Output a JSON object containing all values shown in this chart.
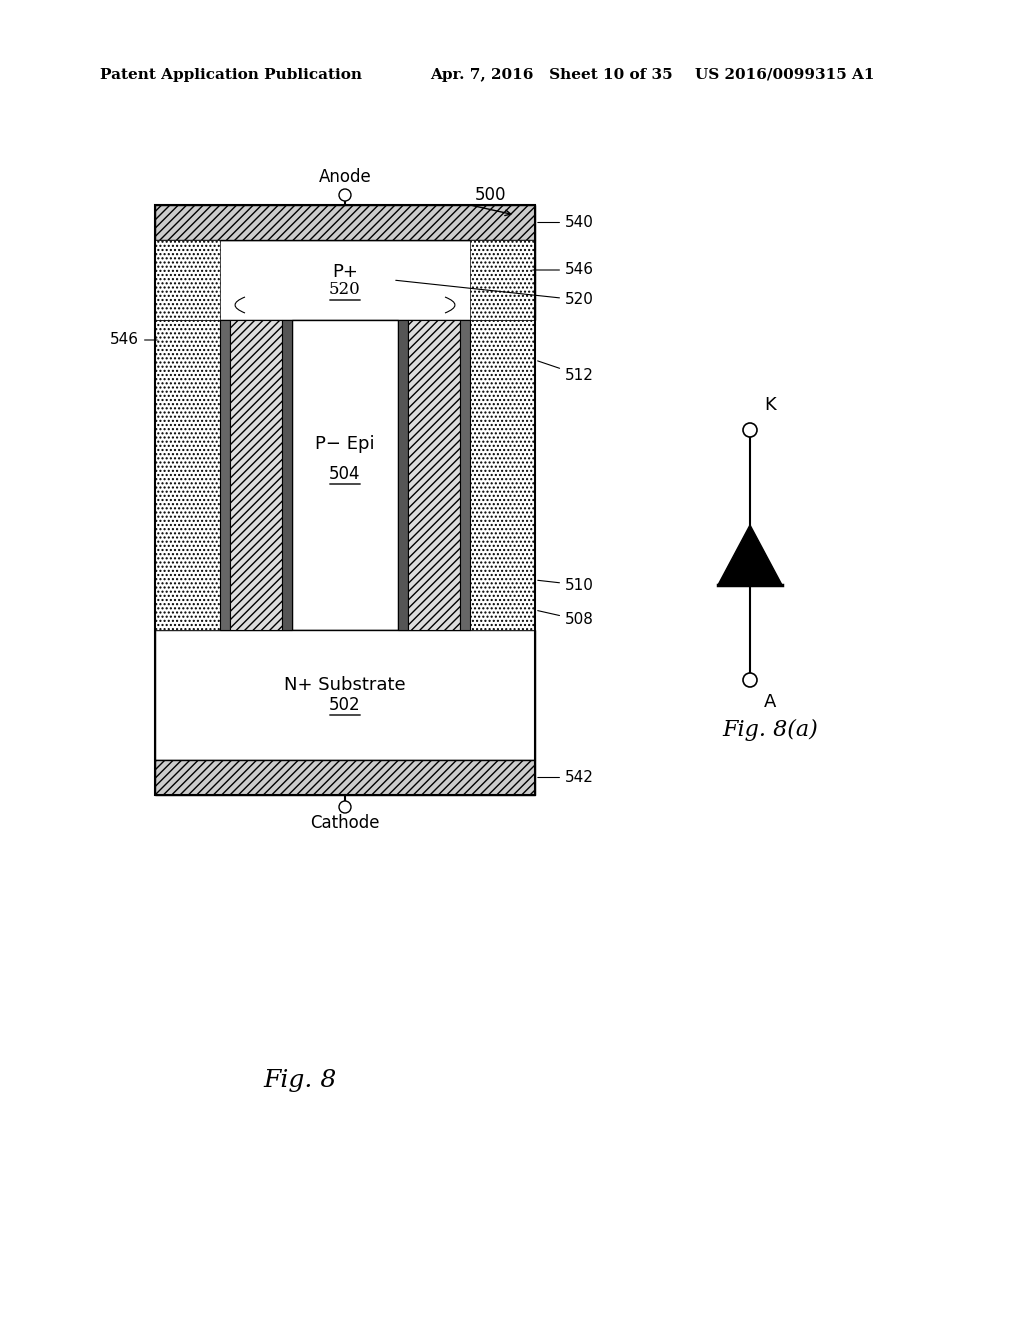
{
  "bg_color": "#ffffff",
  "header_left": "Patent Application Publication",
  "header_center": "Apr. 7, 2016   Sheet 10 of 35",
  "header_right": "US 2016/0099315 A1",
  "fig_label": "Fig. 8",
  "fig8a_label": "Fig. 8(a)",
  "label_500": "500",
  "label_540": "540",
  "label_546_left": "546",
  "label_546_right": "546",
  "label_512": "512",
  "label_520": "520",
  "label_510": "510",
  "label_508": "508",
  "label_502": "502",
  "label_504": "504",
  "label_542": "542",
  "text_P_plus": "P+",
  "text_P_epi": "P− Epi",
  "text_N_sub": "N+ Substrate",
  "text_anode": "Anode",
  "text_cathode": "Cathode",
  "text_K": "K",
  "text_A": "A"
}
